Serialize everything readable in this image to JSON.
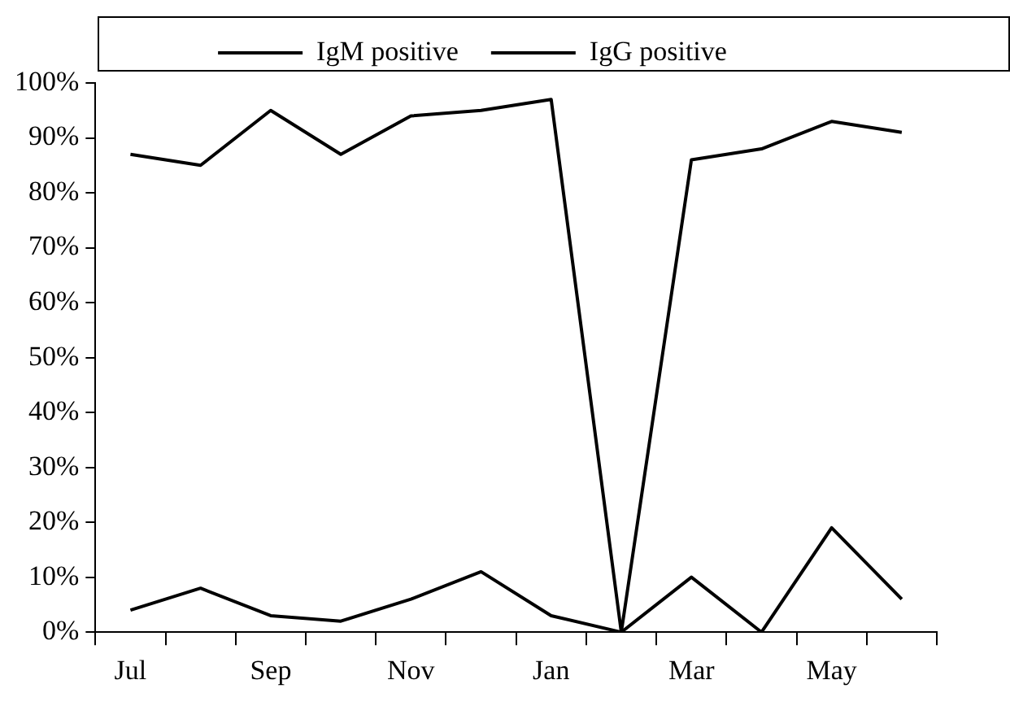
{
  "chart_data": {
    "type": "line",
    "categories": [
      "Jul",
      null,
      "Sep",
      null,
      "Nov",
      null,
      "Jan",
      null,
      "Mar",
      null,
      "May",
      null
    ],
    "series": [
      {
        "name": "IgM positive",
        "color": "#000000",
        "values": [
          4,
          8,
          3,
          2,
          6,
          11,
          3,
          0,
          10,
          0,
          19,
          6
        ]
      },
      {
        "name": "IgG positive",
        "color": "#000000",
        "values": [
          87,
          85,
          95,
          87,
          94,
          95,
          97,
          0,
          86,
          88,
          93,
          91
        ]
      }
    ],
    "ylim": [
      0,
      100
    ],
    "yticks": [
      {
        "value": 0,
        "label": "0%"
      },
      {
        "value": 10,
        "label": "10%"
      },
      {
        "value": 20,
        "label": "20%"
      },
      {
        "value": 30,
        "label": "30%"
      },
      {
        "value": 40,
        "label": "40%"
      },
      {
        "value": 50,
        "label": "50%"
      },
      {
        "value": 60,
        "label": "60%"
      },
      {
        "value": 70,
        "label": "70%"
      },
      {
        "value": 80,
        "label": "80%"
      },
      {
        "value": 90,
        "label": "90%"
      },
      {
        "value": 100,
        "label": "100%"
      }
    ],
    "grid": false,
    "legend": "top",
    "marker": "none",
    "line_style": "solid"
  }
}
